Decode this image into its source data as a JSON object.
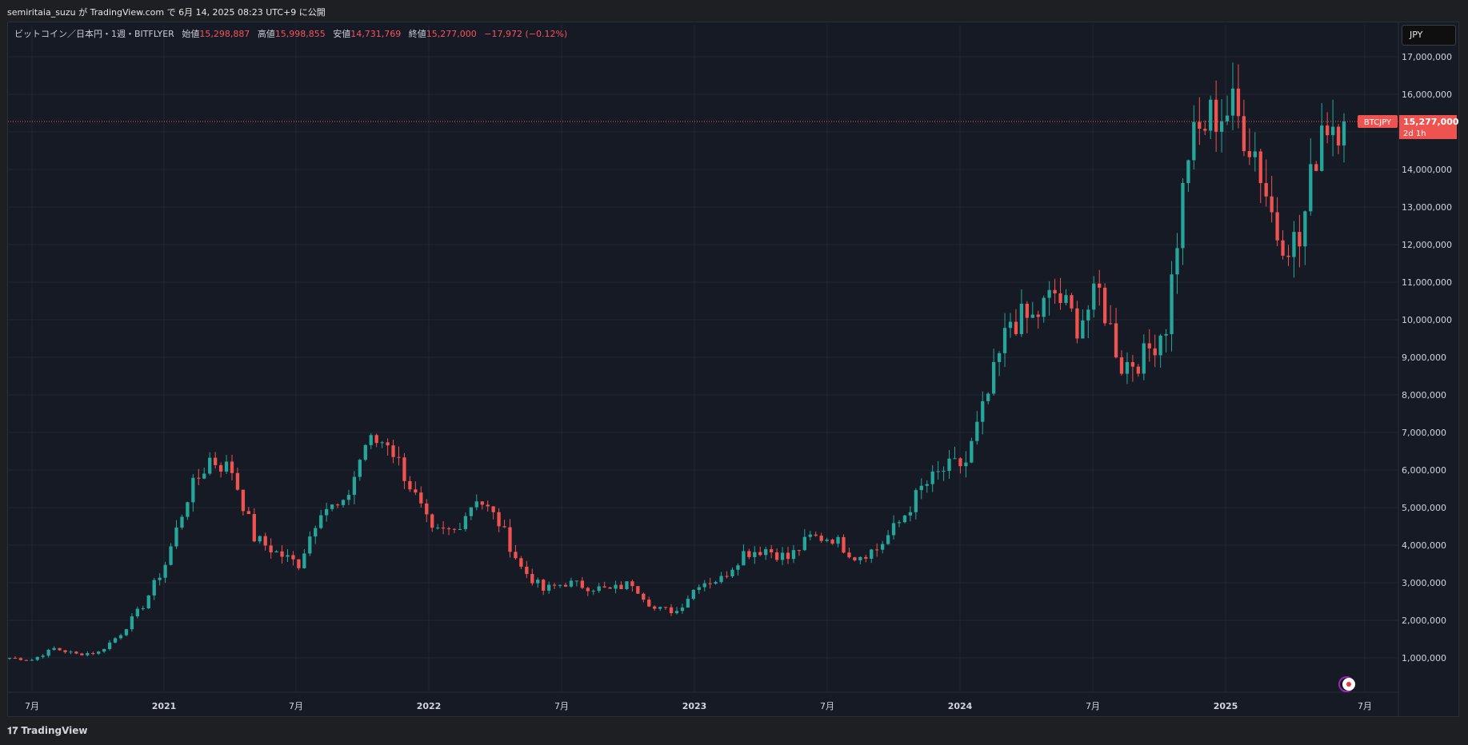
{
  "header": {
    "published": "semiritaia_suzu が TradingView.com で 6月 14, 2025 08:23 UTC+9 に公開"
  },
  "legend": {
    "symbol": "ビットコイン／日本円・1週・BITFLYER",
    "open_label": "始値",
    "open": "15,298,887",
    "high_label": "高値",
    "high": "15,998,855",
    "low_label": "安値",
    "low": "14,731,769",
    "close_label": "終値",
    "close": "15,277,000",
    "change": "−17,972 (−0.12%)"
  },
  "currency_button": "JPY",
  "price_tag": {
    "symbol": "BTCJPY",
    "price": "15,277,000",
    "countdown": "2d 1h"
  },
  "footer": {
    "brand": "TradingView",
    "logo_icon": "tradingview-logo-icon"
  },
  "colors": {
    "up": "#26a69a",
    "down": "#ef5350",
    "background": "#161a25",
    "grid": "#232733"
  },
  "chart_data": {
    "type": "candlestick",
    "title": "",
    "interval": "1週",
    "ylim": [
      0,
      18000000
    ],
    "y_ticks": [
      "1,000,000",
      "2,000,000",
      "3,000,000",
      "4,000,000",
      "5,000,000",
      "6,000,000",
      "7,000,000",
      "8,000,000",
      "9,000,000",
      "10,000,000",
      "11,000,000",
      "12,000,000",
      "13,000,000",
      "14,000,000",
      "15,000,000",
      "16,000,000",
      "17,000,000"
    ],
    "x_ticks": [
      "7月",
      "2021",
      "7月",
      "2022",
      "7月",
      "2023",
      "7月",
      "2024",
      "7月",
      "2025",
      "7月"
    ],
    "grid": true,
    "last_close": 15277000,
    "weekly_close_path": [
      [
        "2020-06",
        1000000
      ],
      [
        "2020-07",
        950000
      ],
      [
        "2020-08",
        1250000
      ],
      [
        "2020-09",
        1100000
      ],
      [
        "2020-10",
        1150000
      ],
      [
        "2020-11",
        1650000
      ],
      [
        "2020-12",
        2400000
      ],
      [
        "2021-01",
        3500000
      ],
      [
        "2021-02",
        5300000
      ],
      [
        "2021-03",
        6300000
      ],
      [
        "2021-04",
        6000000
      ],
      [
        "2021-05",
        4200000
      ],
      [
        "2021-06",
        3800000
      ],
      [
        "2021-07",
        3500000
      ],
      [
        "2021-08",
        5000000
      ],
      [
        "2021-09",
        5000000
      ],
      [
        "2021-10",
        6700000
      ],
      [
        "2021-11",
        6800000
      ],
      [
        "2021-12",
        5600000
      ],
      [
        "2022-01",
        4300000
      ],
      [
        "2022-02",
        4400000
      ],
      [
        "2022-03",
        5300000
      ],
      [
        "2022-04",
        4600000
      ],
      [
        "2022-05",
        3400000
      ],
      [
        "2022-06",
        2800000
      ],
      [
        "2022-07",
        3000000
      ],
      [
        "2022-08",
        2900000
      ],
      [
        "2022-09",
        2800000
      ],
      [
        "2022-10",
        3000000
      ],
      [
        "2022-11",
        2300000
      ],
      [
        "2022-12",
        2250000
      ],
      [
        "2023-01",
        3000000
      ],
      [
        "2023-02",
        3100000
      ],
      [
        "2023-03",
        3800000
      ],
      [
        "2023-04",
        3900000
      ],
      [
        "2023-05",
        3650000
      ],
      [
        "2023-06",
        4200000
      ],
      [
        "2023-07",
        4200000
      ],
      [
        "2023-08",
        3700000
      ],
      [
        "2023-09",
        3900000
      ],
      [
        "2023-10",
        4600000
      ],
      [
        "2023-11",
        5500000
      ],
      [
        "2023-12",
        6000000
      ],
      [
        "2024-01",
        6200000
      ],
      [
        "2024-02",
        8000000
      ],
      [
        "2024-03",
        10000000
      ],
      [
        "2024-04",
        10000000
      ],
      [
        "2024-05",
        10700000
      ],
      [
        "2024-06",
        9900000
      ],
      [
        "2024-07",
        10700000
      ],
      [
        "2024-08",
        8800000
      ],
      [
        "2024-09",
        9000000
      ],
      [
        "2024-10",
        9900000
      ],
      [
        "2024-11",
        14500000
      ],
      [
        "2024-12",
        15400000
      ],
      [
        "2025-01",
        15600000
      ],
      [
        "2025-02",
        14500000
      ],
      [
        "2025-03",
        12300000
      ],
      [
        "2025-04",
        12000000
      ],
      [
        "2025-05",
        15300000
      ],
      [
        "2025-06",
        15277000
      ]
    ]
  }
}
